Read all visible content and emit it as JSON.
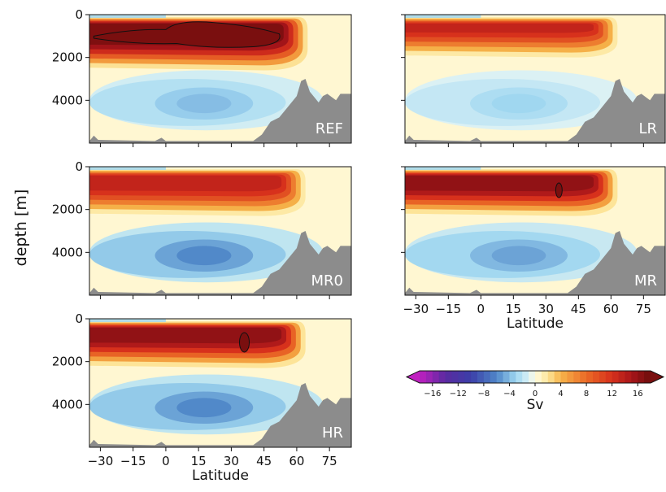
{
  "chart_data": {
    "type": "heatmap",
    "ylabel": "depth [m]",
    "xlabel": "Latitude",
    "xlim": [
      -35,
      85
    ],
    "ylim": [
      6000,
      0
    ],
    "x_ticks": [
      -30,
      -15,
      0,
      15,
      30,
      45,
      60,
      75
    ],
    "x_tick_labels": [
      "−30",
      "−15",
      "0",
      "15",
      "30",
      "45",
      "60",
      "75"
    ],
    "y_ticks": [
      0,
      2000,
      4000
    ],
    "y_tick_labels": [
      "0",
      "2000",
      "4000"
    ],
    "colorbar": {
      "label": "Sv",
      "range": [
        -18,
        18
      ],
      "ticks": [
        -16,
        -12,
        -8,
        -4,
        0,
        4,
        8,
        12,
        16
      ],
      "tick_labels": [
        "−16",
        "−12",
        "−8",
        "−4",
        "0",
        "4",
        "8",
        "12",
        "16"
      ],
      "extend": "both"
    },
    "panels": [
      {
        "name": "REF",
        "label": "REF",
        "upper_cell_max_sv": 18,
        "upper_cell_base_depth_m": 2600,
        "northern_extent_lat": 65,
        "lower_cell_min_sv": -4,
        "x_axis_labeled": false
      },
      {
        "name": "LR",
        "label": "LR",
        "upper_cell_max_sv": 14,
        "upper_cell_base_depth_m": 2000,
        "northern_extent_lat": 63,
        "lower_cell_min_sv": -3,
        "x_axis_labeled": false
      },
      {
        "name": "MR0",
        "label": "MR0",
        "upper_cell_max_sv": 14,
        "upper_cell_base_depth_m": 2300,
        "northern_extent_lat": 64,
        "lower_cell_min_sv": -6,
        "x_axis_labeled": false
      },
      {
        "name": "MR",
        "label": "MR",
        "upper_cell_max_sv": 17,
        "upper_cell_base_depth_m": 2300,
        "northern_extent_lat": 63,
        "lower_cell_min_sv": -5,
        "x_axis_labeled": true
      },
      {
        "name": "HR",
        "label": "HR",
        "upper_cell_max_sv": 17,
        "upper_cell_base_depth_m": 2300,
        "northern_extent_lat": 64,
        "lower_cell_min_sv": -6,
        "x_axis_labeled": true
      }
    ],
    "colors": {
      "positive_dark": "#7a0f0f",
      "positive": "#d6301c",
      "zero": "#fffbe0",
      "negative": "#9ed6f0",
      "negative_dark": "#3b3fa8",
      "extreme_negative": "#c020c0",
      "topography": "#8c8c8c"
    }
  }
}
